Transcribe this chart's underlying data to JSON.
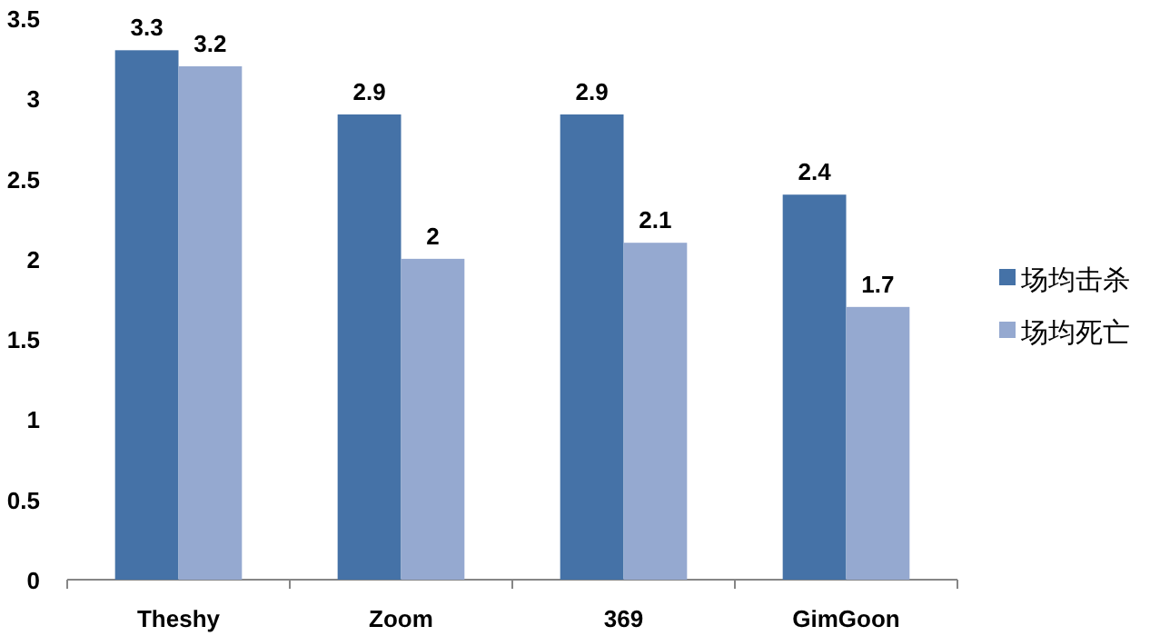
{
  "chart_data": {
    "type": "bar",
    "categories": [
      "Theshy",
      "Zoom",
      "369",
      "GimGoon"
    ],
    "series": [
      {
        "name": "场均击杀",
        "color": "#4572a7",
        "values": [
          3.3,
          2.9,
          2.9,
          2.4
        ]
      },
      {
        "name": "场均死亡",
        "color": "#95a9d0",
        "values": [
          3.2,
          2,
          2.1,
          1.7
        ]
      }
    ],
    "ylim": [
      0,
      3.5
    ],
    "yticks": [
      0,
      0.5,
      1,
      1.5,
      2,
      2.5,
      3,
      3.5
    ],
    "data_labels": true,
    "grid": false,
    "legend": "right"
  }
}
